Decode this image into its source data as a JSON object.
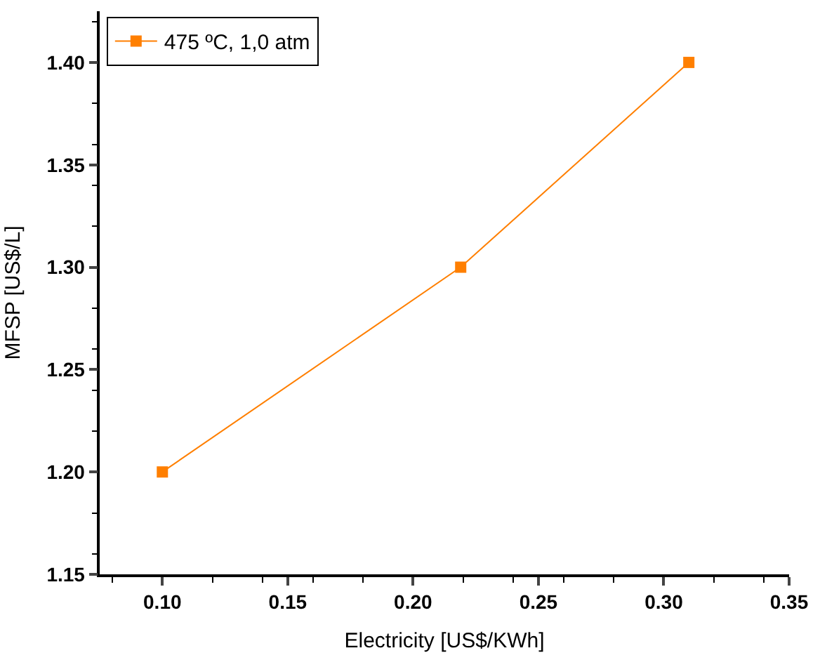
{
  "chart_data": {
    "type": "line",
    "xlabel": "Electricity [US$/KWh]",
    "ylabel": "MFSP [US$/L]",
    "x": [
      0.1,
      0.219,
      0.31
    ],
    "series": [
      {
        "name": "475 ºC, 1,0 atm",
        "color": "#ff7f00",
        "values": [
          1.2,
          1.3,
          1.4
        ]
      }
    ],
    "xlim": [
      0.075,
      0.35
    ],
    "xticks": [
      {
        "value": 0.1,
        "label": "0.10"
      },
      {
        "value": 0.15,
        "label": "0.15"
      },
      {
        "value": 0.2,
        "label": "0.20"
      },
      {
        "value": 0.25,
        "label": "0.25"
      },
      {
        "value": 0.3,
        "label": "0.30"
      },
      {
        "value": 0.35,
        "label": "0.35"
      }
    ],
    "ylim": [
      1.15,
      1.425
    ],
    "yticks": [
      {
        "value": 1.15,
        "label": "1.15"
      },
      {
        "value": 1.2,
        "label": "1.20"
      },
      {
        "value": 1.25,
        "label": "1.25"
      },
      {
        "value": 1.3,
        "label": "1.30"
      },
      {
        "value": 1.35,
        "label": "1.35"
      },
      {
        "value": 1.4,
        "label": "1.40"
      }
    ],
    "legend": "top left",
    "marker": "square",
    "line_style": "solid"
  }
}
